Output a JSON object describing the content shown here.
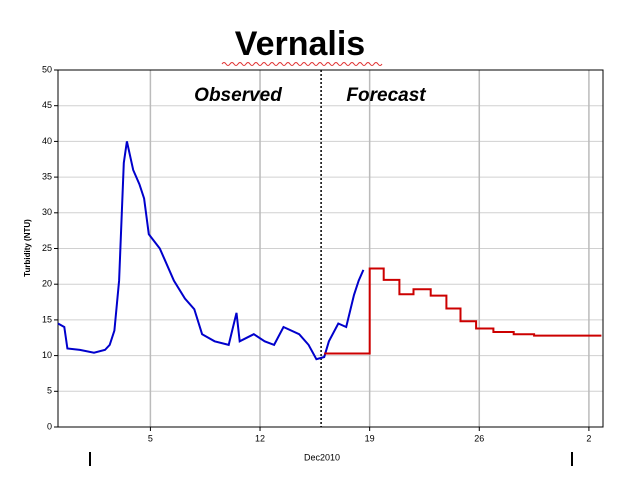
{
  "chart_data": {
    "type": "line",
    "title": "Vernalis",
    "y_label": "Turbidity (NTU)",
    "x_label": "Dec2010",
    "annotations": [
      "Observed",
      "Forecast"
    ],
    "divider_x": 15.9,
    "xlim": [
      -0.9,
      33.9
    ],
    "ylim": [
      0,
      50
    ],
    "xticks": [
      5,
      12,
      19,
      26,
      {
        "value": 33,
        "label": "2"
      }
    ],
    "yticks": [
      0,
      5,
      10,
      15,
      20,
      25,
      30,
      35,
      40,
      45,
      50
    ],
    "grid": true,
    "series": [
      {
        "color": "#0000cc",
        "x": [
          -0.9,
          -0.5,
          -0.3,
          0.5,
          1.4,
          2.1,
          2.4,
          2.7,
          3.0,
          3.3,
          3.5,
          3.9,
          4.3,
          4.6,
          4.9,
          5.6,
          5.9,
          6.5,
          7.2,
          7.8,
          8.3,
          9.1,
          10.0,
          10.5,
          10.7,
          11.6,
          12.3,
          12.9,
          13.5,
          14.5,
          15.1,
          15.6,
          16.1,
          16.4,
          17.0,
          17.5,
          18.0,
          18.3,
          18.6
        ],
        "values": [
          14.5,
          14,
          11,
          10.8,
          10.4,
          10.8,
          11.5,
          13.5,
          20.5,
          37,
          40,
          36,
          34,
          32,
          27,
          25,
          23.5,
          20.5,
          18,
          16.5,
          13,
          12,
          11.5,
          16,
          12,
          13,
          12,
          11.5,
          14,
          13,
          11.5,
          9.5,
          9.8,
          12,
          14.5,
          14,
          18.5,
          20.5,
          22
        ]
      },
      {
        "color": "#cc0000",
        "x": [
          16.1,
          19.0,
          19.0,
          19.9,
          19.9,
          20.9,
          20.9,
          21.8,
          21.8,
          22.9,
          22.9,
          23.9,
          23.9,
          24.8,
          24.8,
          25.8,
          25.8,
          26.9,
          26.9,
          28.2,
          28.2,
          29.5,
          29.5,
          33.8
        ],
        "values": [
          10.3,
          10.3,
          22.2,
          22.2,
          20.6,
          20.6,
          18.6,
          18.6,
          19.3,
          19.3,
          18.4,
          18.4,
          16.6,
          16.6,
          14.8,
          14.8,
          13.8,
          13.8,
          13.3,
          13.3,
          13.0,
          13.0,
          12.8,
          12.8
        ]
      }
    ]
  }
}
